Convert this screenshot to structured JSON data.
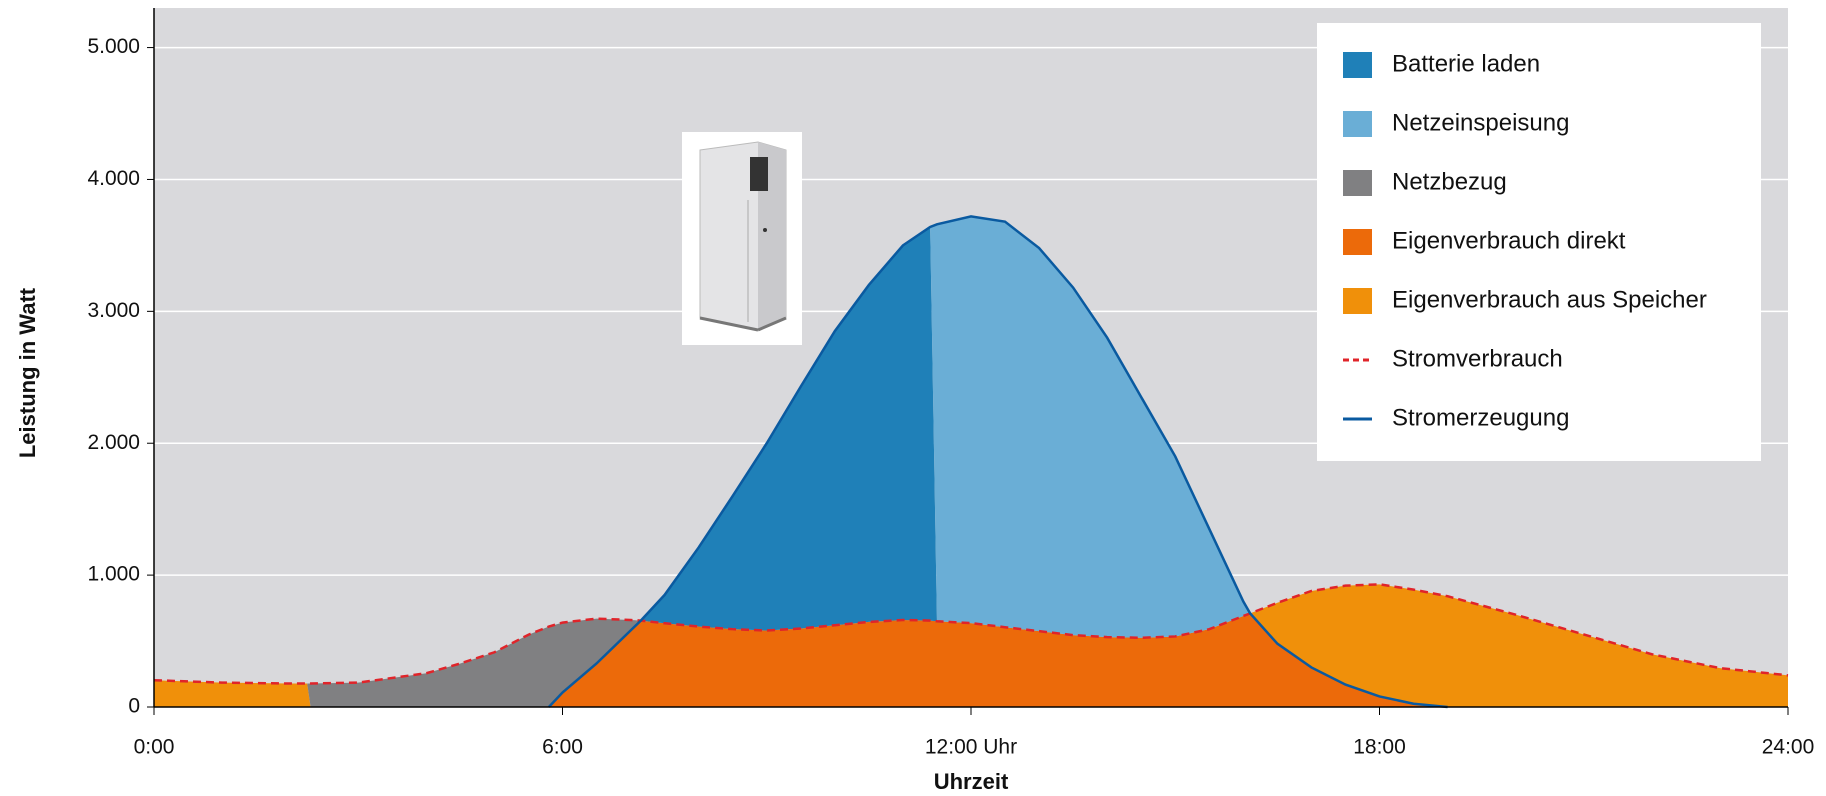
{
  "chart_data": {
    "type": "stacked-area",
    "xlabel": "Uhrzeit",
    "ylabel": "Leistung in Watt",
    "xlim": [
      0,
      24
    ],
    "ylim": [
      0,
      5300
    ],
    "xticks": [
      {
        "value": 0,
        "label": "0:00"
      },
      {
        "value": 6,
        "label": "6:00"
      },
      {
        "value": 12,
        "label": "12:00 Uhr"
      },
      {
        "value": 18,
        "label": "18:00"
      },
      {
        "value": 24,
        "label": "24:00"
      }
    ],
    "yticks": [
      0,
      {
        "value": 1000,
        "label": "1.000"
      },
      {
        "value": 2000,
        "label": "2.000"
      },
      {
        "value": 3000,
        "label": "3.000"
      },
      {
        "value": 4000,
        "label": "4.000"
      },
      {
        "value": 5000,
        "label": "5.000"
      }
    ],
    "grid": true,
    "legend": "upper right",
    "x": [
      0,
      1,
      2,
      2.25,
      2.3,
      3,
      4,
      4.5,
      5,
      5.5,
      5.8,
      6,
      6.5,
      7,
      7.15,
      7.5,
      8,
      8.5,
      9,
      9.5,
      10,
      10.5,
      11,
      11.4,
      11.5,
      12,
      12.5,
      13,
      13.5,
      14,
      14.5,
      15,
      15.5,
      16,
      16.1,
      16.5,
      17,
      17.5,
      18,
      18.5,
      19,
      20,
      21,
      22,
      23,
      24
    ],
    "series": [
      {
        "name": "Batterie laden",
        "kind": "area",
        "color": "#1f80b8",
        "values": [
          0,
          0,
          0,
          0,
          0,
          0,
          0,
          0,
          0,
          0,
          0,
          0,
          0,
          0,
          0,
          215,
          600,
          1010,
          1420,
          1835,
          2230,
          2555,
          2840,
          2985,
          0,
          0,
          0,
          0,
          0,
          0,
          0,
          0,
          0,
          0,
          0,
          0,
          0,
          0,
          0,
          0,
          0,
          0,
          0,
          0,
          0,
          0
        ]
      },
      {
        "name": "Netzeinspeisung",
        "kind": "area",
        "color": "#6aaed6",
        "values": [
          0,
          0,
          0,
          0,
          0,
          0,
          0,
          0,
          0,
          0,
          0,
          0,
          0,
          0,
          0,
          0,
          0,
          0,
          0,
          0,
          0,
          0,
          0,
          0,
          3010,
          3084,
          3075,
          2905,
          2635,
          2270,
          1825,
          1365,
          760,
          110,
          0,
          0,
          0,
          0,
          0,
          0,
          0,
          0,
          0,
          0,
          0,
          0
        ]
      },
      {
        "name": "Netzbezug",
        "kind": "area",
        "color": "#808082",
        "values": [
          0,
          0,
          0,
          0,
          178,
          185,
          256,
          330,
          415,
          548,
          610,
          530,
          340,
          80,
          0,
          0,
          0,
          0,
          0,
          0,
          0,
          0,
          0,
          0,
          0,
          0,
          0,
          0,
          0,
          0,
          0,
          0,
          0,
          0,
          0,
          0,
          0,
          0,
          0,
          0,
          0,
          0,
          0,
          0,
          0,
          0
        ]
      },
      {
        "name": "Eigenverbrauch direkt",
        "kind": "area",
        "color": "#ec6a0a",
        "values": [
          0,
          0,
          0,
          0,
          0,
          0,
          0,
          0,
          0,
          0,
          0,
          110,
          330,
          580,
          655,
          635,
          610,
          590,
          580,
          595,
          620,
          645,
          660,
          655,
          650,
          636,
          605,
          575,
          545,
          530,
          525,
          535,
          590,
          690,
          710,
          480,
          300,
          170,
          80,
          25,
          0,
          0,
          0,
          0,
          0,
          0
        ]
      },
      {
        "name": "Eigenverbrauch aus Speicher",
        "kind": "area",
        "color": "#f0900a",
        "values": [
          203,
          185,
          178,
          178,
          0,
          0,
          0,
          0,
          0,
          0,
          0,
          0,
          0,
          0,
          0,
          0,
          0,
          0,
          0,
          0,
          0,
          0,
          0,
          0,
          0,
          0,
          0,
          0,
          0,
          0,
          0,
          0,
          0,
          0,
          0,
          310,
          580,
          750,
          850,
          865,
          840,
          700,
          550,
          400,
          295,
          240
        ]
      },
      {
        "name": "Stromverbrauch",
        "kind": "line",
        "style": "dashed",
        "color": "#e0242a",
        "values": [
          203,
          185,
          178,
          178,
          178,
          185,
          256,
          330,
          415,
          548,
          610,
          640,
          670,
          660,
          655,
          635,
          610,
          590,
          580,
          595,
          620,
          645,
          660,
          655,
          650,
          636,
          605,
          575,
          545,
          530,
          525,
          535,
          590,
          690,
          710,
          790,
          880,
          920,
          930,
          890,
          840,
          700,
          550,
          400,
          295,
          240
        ]
      },
      {
        "name": "Stromerzeugung",
        "kind": "line",
        "style": "solid",
        "color": "#0a5aa0",
        "values": [
          null,
          null,
          null,
          null,
          null,
          null,
          null,
          null,
          null,
          null,
          0,
          110,
          330,
          580,
          655,
          850,
          1210,
          1600,
          2000,
          2430,
          2850,
          3200,
          3500,
          3640,
          3660,
          3720,
          3680,
          3480,
          3180,
          2800,
          2350,
          1900,
          1350,
          800,
          710,
          480,
          300,
          170,
          80,
          25,
          0,
          null,
          null,
          null,
          null,
          null
        ]
      }
    ]
  }
}
